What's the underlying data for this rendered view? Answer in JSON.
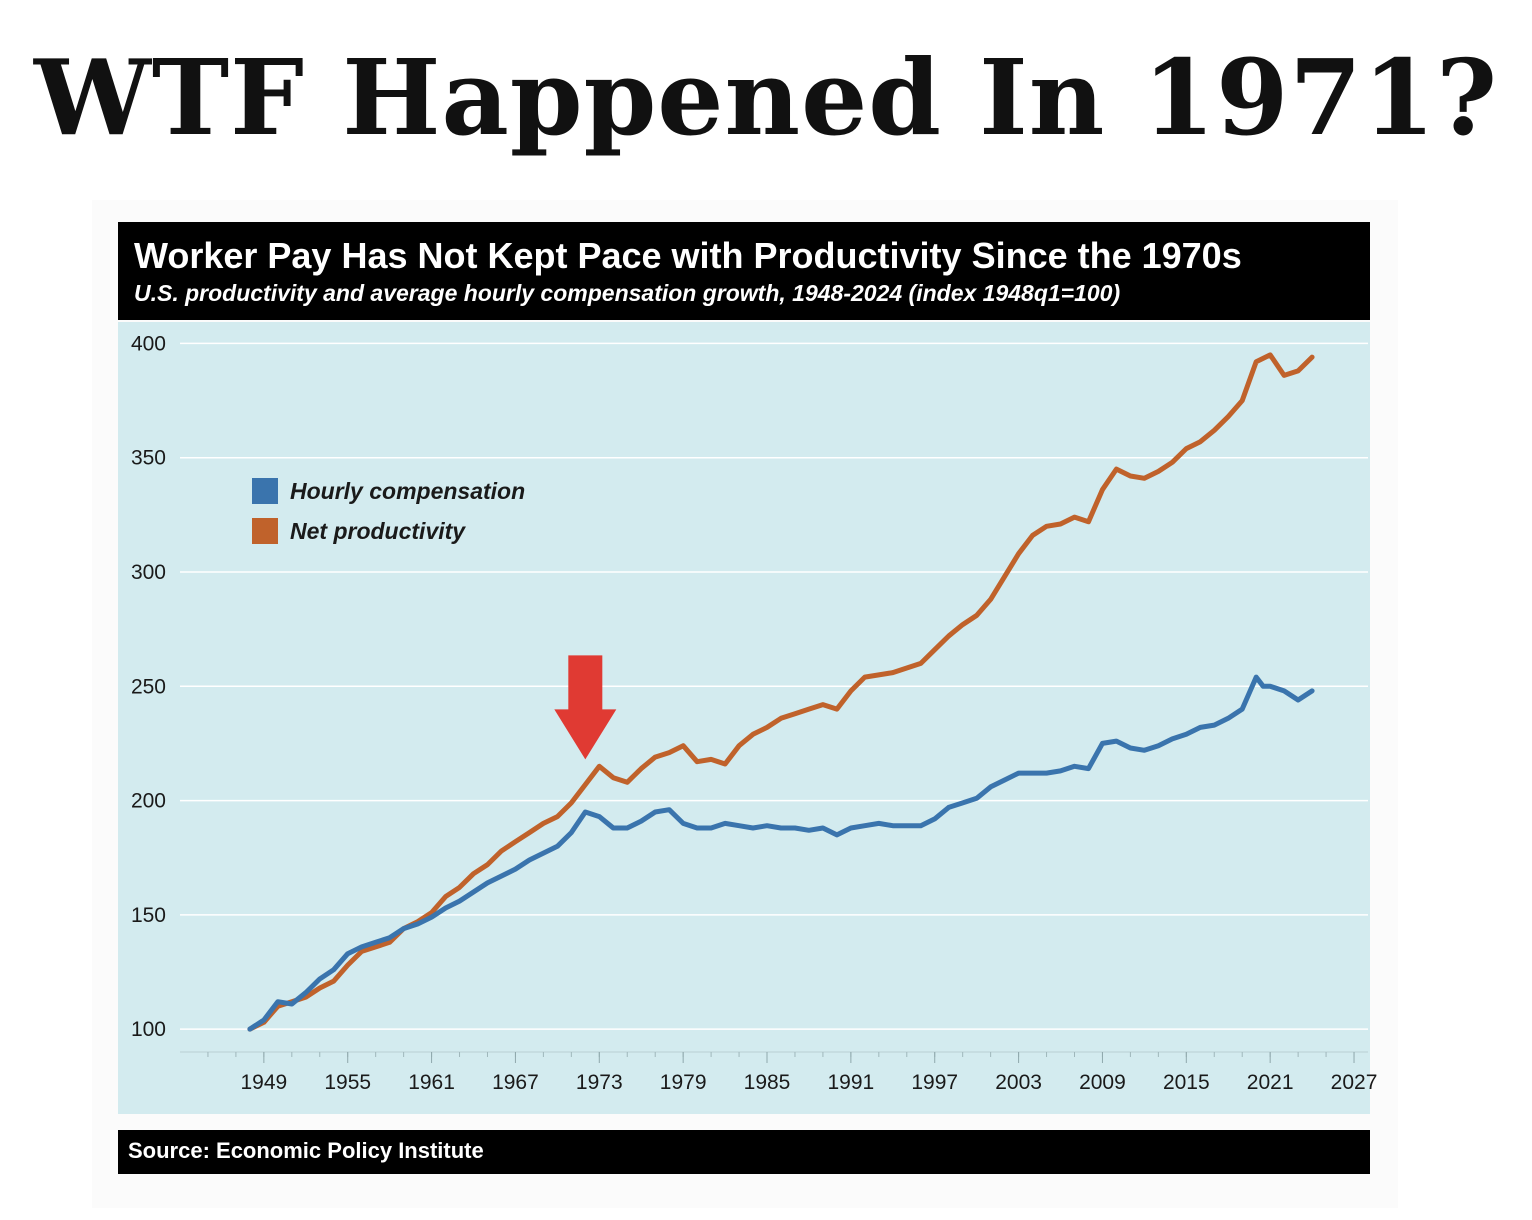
{
  "headline": "WTF Happened In 1971?",
  "chart_data": {
    "type": "line",
    "title": "Worker Pay Has Not Kept Pace with Productivity Since the 1970s",
    "subtitle": "U.S. productivity and average hourly compensation growth, 1948-2024 (index 1948q1=100)",
    "source": "Source: Economic Policy Institute",
    "xlabel": "",
    "ylabel": "",
    "xlim": [
      1943,
      2028
    ],
    "ylim": [
      90,
      405
    ],
    "x_ticks": [
      1949,
      1955,
      1961,
      1967,
      1973,
      1979,
      1985,
      1991,
      1997,
      2003,
      2009,
      2015,
      2021,
      2027
    ],
    "y_ticks": [
      100,
      150,
      200,
      250,
      300,
      350,
      400
    ],
    "grid": true,
    "legend_position": "top-left",
    "series": [
      {
        "name": "Hourly compensation",
        "color": "#3a74ad",
        "points": [
          [
            1948,
            100
          ],
          [
            1949,
            104
          ],
          [
            1950,
            112
          ],
          [
            1951,
            111
          ],
          [
            1952,
            116
          ],
          [
            1953,
            122
          ],
          [
            1954,
            126
          ],
          [
            1955,
            133
          ],
          [
            1956,
            136
          ],
          [
            1957,
            138
          ],
          [
            1958,
            140
          ],
          [
            1959,
            144
          ],
          [
            1960,
            146
          ],
          [
            1961,
            149
          ],
          [
            1962,
            153
          ],
          [
            1963,
            156
          ],
          [
            1964,
            160
          ],
          [
            1965,
            164
          ],
          [
            1966,
            167
          ],
          [
            1967,
            170
          ],
          [
            1968,
            174
          ],
          [
            1969,
            177
          ],
          [
            1970,
            180
          ],
          [
            1971,
            186
          ],
          [
            1972,
            195
          ],
          [
            1973,
            193
          ],
          [
            1974,
            188
          ],
          [
            1975,
            188
          ],
          [
            1976,
            191
          ],
          [
            1977,
            195
          ],
          [
            1978,
            196
          ],
          [
            1979,
            190
          ],
          [
            1980,
            188
          ],
          [
            1981,
            188
          ],
          [
            1982,
            190
          ],
          [
            1983,
            189
          ],
          [
            1984,
            188
          ],
          [
            1985,
            189
          ],
          [
            1986,
            188
          ],
          [
            1987,
            188
          ],
          [
            1988,
            187
          ],
          [
            1989,
            188
          ],
          [
            1990,
            185
          ],
          [
            1991,
            188
          ],
          [
            1992,
            189
          ],
          [
            1993,
            190
          ],
          [
            1994,
            189
          ],
          [
            1995,
            189
          ],
          [
            1996,
            189
          ],
          [
            1997,
            192
          ],
          [
            1998,
            197
          ],
          [
            1999,
            199
          ],
          [
            2000,
            201
          ],
          [
            2001,
            206
          ],
          [
            2002,
            209
          ],
          [
            2003,
            212
          ],
          [
            2004,
            212
          ],
          [
            2005,
            212
          ],
          [
            2006,
            213
          ],
          [
            2007,
            215
          ],
          [
            2008,
            214
          ],
          [
            2009,
            225
          ],
          [
            2010,
            226
          ],
          [
            2011,
            223
          ],
          [
            2012,
            222
          ],
          [
            2013,
            224
          ],
          [
            2014,
            227
          ],
          [
            2015,
            229
          ],
          [
            2016,
            232
          ],
          [
            2017,
            233
          ],
          [
            2018,
            236
          ],
          [
            2019,
            240
          ],
          [
            2020,
            254
          ],
          [
            2020.5,
            250
          ],
          [
            2021,
            250
          ],
          [
            2022,
            248
          ],
          [
            2023,
            244
          ],
          [
            2024,
            248
          ]
        ]
      },
      {
        "name": "Net productivity",
        "color": "#c0622b",
        "points": [
          [
            1948,
            100
          ],
          [
            1949,
            103
          ],
          [
            1950,
            110
          ],
          [
            1951,
            112
          ],
          [
            1952,
            114
          ],
          [
            1953,
            118
          ],
          [
            1954,
            121
          ],
          [
            1955,
            128
          ],
          [
            1956,
            134
          ],
          [
            1957,
            136
          ],
          [
            1958,
            138
          ],
          [
            1959,
            144
          ],
          [
            1960,
            147
          ],
          [
            1961,
            151
          ],
          [
            1962,
            158
          ],
          [
            1963,
            162
          ],
          [
            1964,
            168
          ],
          [
            1965,
            172
          ],
          [
            1966,
            178
          ],
          [
            1967,
            182
          ],
          [
            1968,
            186
          ],
          [
            1969,
            190
          ],
          [
            1970,
            193
          ],
          [
            1971,
            199
          ],
          [
            1972,
            207
          ],
          [
            1973,
            215
          ],
          [
            1974,
            210
          ],
          [
            1975,
            208
          ],
          [
            1976,
            214
          ],
          [
            1977,
            219
          ],
          [
            1978,
            221
          ],
          [
            1979,
            224
          ],
          [
            1980,
            217
          ],
          [
            1981,
            218
          ],
          [
            1982,
            216
          ],
          [
            1983,
            224
          ],
          [
            1984,
            229
          ],
          [
            1985,
            232
          ],
          [
            1986,
            236
          ],
          [
            1987,
            238
          ],
          [
            1988,
            240
          ],
          [
            1989,
            242
          ],
          [
            1990,
            240
          ],
          [
            1991,
            248
          ],
          [
            1992,
            254
          ],
          [
            1993,
            255
          ],
          [
            1994,
            256
          ],
          [
            1995,
            258
          ],
          [
            1996,
            260
          ],
          [
            1997,
            266
          ],
          [
            1998,
            272
          ],
          [
            1999,
            277
          ],
          [
            2000,
            281
          ],
          [
            2001,
            288
          ],
          [
            2002,
            298
          ],
          [
            2003,
            308
          ],
          [
            2004,
            316
          ],
          [
            2005,
            320
          ],
          [
            2006,
            321
          ],
          [
            2007,
            324
          ],
          [
            2008,
            322
          ],
          [
            2009,
            336
          ],
          [
            2010,
            345
          ],
          [
            2011,
            342
          ],
          [
            2012,
            341
          ],
          [
            2013,
            344
          ],
          [
            2014,
            348
          ],
          [
            2015,
            354
          ],
          [
            2016,
            357
          ],
          [
            2017,
            362
          ],
          [
            2018,
            368
          ],
          [
            2019,
            375
          ],
          [
            2020,
            392
          ],
          [
            2021,
            395
          ],
          [
            2022,
            386
          ],
          [
            2023,
            388
          ],
          [
            2024,
            394
          ]
        ]
      }
    ],
    "annotations": [
      {
        "type": "arrow",
        "direction": "down",
        "x": 1972,
        "y": 218,
        "color": "#e03a33"
      }
    ]
  }
}
